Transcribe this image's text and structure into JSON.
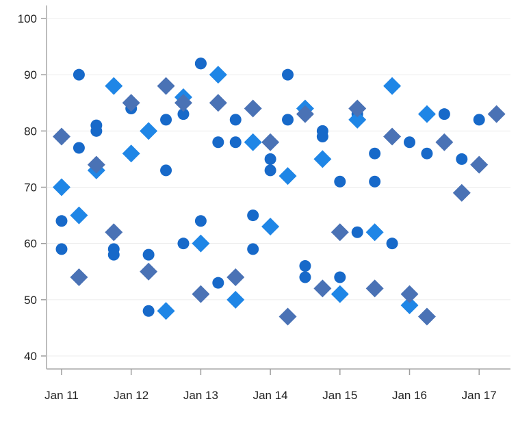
{
  "chart_data": {
    "type": "scatter",
    "title": "",
    "xlabel": "",
    "ylabel": "",
    "x_ticks": [
      "Jan 11",
      "Jan 12",
      "Jan 13",
      "Jan 14",
      "Jan 15",
      "Jan 16",
      "Jan 17"
    ],
    "y_ticks": [
      "40",
      "50",
      "60",
      "70",
      "80",
      "90",
      "100"
    ],
    "xlim": [
      "Jan 10 19:00",
      "Jan 17 12:00"
    ],
    "ylim": [
      38,
      102
    ],
    "grid": "horizontal",
    "legend": "none",
    "series": [
      {
        "marker": "circle",
        "color": "#1769c9",
        "points": [
          {
            "x": "Jan 11 00:00",
            "y": 64
          },
          {
            "x": "Jan 11 00:00",
            "y": 59
          },
          {
            "x": "Jan 11 06:00",
            "y": 90
          },
          {
            "x": "Jan 11 06:00",
            "y": 77
          },
          {
            "x": "Jan 11 12:00",
            "y": 81
          },
          {
            "x": "Jan 11 12:00",
            "y": 80
          },
          {
            "x": "Jan 11 18:00",
            "y": 59
          },
          {
            "x": "Jan 11 18:00",
            "y": 58
          },
          {
            "x": "Jan 12 00:00",
            "y": 84
          },
          {
            "x": "Jan 12 06:00",
            "y": 58
          },
          {
            "x": "Jan 12 06:00",
            "y": 48
          },
          {
            "x": "Jan 12 12:00",
            "y": 82
          },
          {
            "x": "Jan 12 12:00",
            "y": 73
          },
          {
            "x": "Jan 12 18:00",
            "y": 83
          },
          {
            "x": "Jan 12 18:00",
            "y": 60
          },
          {
            "x": "Jan 13 00:00",
            "y": 92
          },
          {
            "x": "Jan 13 00:00",
            "y": 64
          },
          {
            "x": "Jan 13 06:00",
            "y": 78
          },
          {
            "x": "Jan 13 06:00",
            "y": 53
          },
          {
            "x": "Jan 13 12:00",
            "y": 82
          },
          {
            "x": "Jan 13 12:00",
            "y": 78
          },
          {
            "x": "Jan 13 18:00",
            "y": 65
          },
          {
            "x": "Jan 13 18:00",
            "y": 59
          },
          {
            "x": "Jan 14 00:00",
            "y": 75
          },
          {
            "x": "Jan 14 00:00",
            "y": 73
          },
          {
            "x": "Jan 14 06:00",
            "y": 90
          },
          {
            "x": "Jan 14 06:00",
            "y": 82
          },
          {
            "x": "Jan 14 12:00",
            "y": 56
          },
          {
            "x": "Jan 14 12:00",
            "y": 54
          },
          {
            "x": "Jan 14 18:00",
            "y": 80
          },
          {
            "x": "Jan 14 18:00",
            "y": 79
          },
          {
            "x": "Jan 15 00:00",
            "y": 71
          },
          {
            "x": "Jan 15 00:00",
            "y": 54
          },
          {
            "x": "Jan 15 06:00",
            "y": 83
          },
          {
            "x": "Jan 15 06:00",
            "y": 62
          },
          {
            "x": "Jan 15 12:00",
            "y": 76
          },
          {
            "x": "Jan 15 12:00",
            "y": 71
          },
          {
            "x": "Jan 15 18:00",
            "y": 60
          },
          {
            "x": "Jan 16 00:00",
            "y": 78
          },
          {
            "x": "Jan 16 06:00",
            "y": 76
          },
          {
            "x": "Jan 16 12:00",
            "y": 83
          },
          {
            "x": "Jan 16 18:00",
            "y": 75
          },
          {
            "x": "Jan 17 00:00",
            "y": 82
          },
          {
            "x": "Jan 13 00:00",
            "y": 92
          }
        ]
      },
      {
        "marker": "diamond",
        "color": "#1f86e6",
        "points": [
          {
            "x": "Jan 11 00:00",
            "y": 70
          },
          {
            "x": "Jan 11 06:00",
            "y": 65
          },
          {
            "x": "Jan 11 12:00",
            "y": 73
          },
          {
            "x": "Jan 11 18:00",
            "y": 88
          },
          {
            "x": "Jan 12 00:00",
            "y": 76
          },
          {
            "x": "Jan 12 06:00",
            "y": 80
          },
          {
            "x": "Jan 12 12:00",
            "y": 48
          },
          {
            "x": "Jan 12 18:00",
            "y": 86
          },
          {
            "x": "Jan 13 00:00",
            "y": 60
          },
          {
            "x": "Jan 13 06:00",
            "y": 90
          },
          {
            "x": "Jan 13 12:00",
            "y": 50
          },
          {
            "x": "Jan 13 18:00",
            "y": 78
          },
          {
            "x": "Jan 14 00:00",
            "y": 63
          },
          {
            "x": "Jan 14 06:00",
            "y": 72
          },
          {
            "x": "Jan 14 12:00",
            "y": 84
          },
          {
            "x": "Jan 14 18:00",
            "y": 75
          },
          {
            "x": "Jan 15 00:00",
            "y": 51
          },
          {
            "x": "Jan 15 06:00",
            "y": 82
          },
          {
            "x": "Jan 15 12:00",
            "y": 62
          },
          {
            "x": "Jan 15 18:00",
            "y": 88
          },
          {
            "x": "Jan 16 00:00",
            "y": 49
          },
          {
            "x": "Jan 16 06:00",
            "y": 83
          }
        ]
      },
      {
        "marker": "diamond",
        "color": "#4a72b5",
        "points": [
          {
            "x": "Jan 11 00:00",
            "y": 79
          },
          {
            "x": "Jan 11 06:00",
            "y": 54
          },
          {
            "x": "Jan 11 12:00",
            "y": 74
          },
          {
            "x": "Jan 11 18:00",
            "y": 62
          },
          {
            "x": "Jan 12 00:00",
            "y": 85
          },
          {
            "x": "Jan 12 06:00",
            "y": 55
          },
          {
            "x": "Jan 12 12:00",
            "y": 88
          },
          {
            "x": "Jan 12 18:00",
            "y": 85
          },
          {
            "x": "Jan 13 00:00",
            "y": 51
          },
          {
            "x": "Jan 13 06:00",
            "y": 85
          },
          {
            "x": "Jan 13 12:00",
            "y": 54
          },
          {
            "x": "Jan 13 18:00",
            "y": 84
          },
          {
            "x": "Jan 14 00:00",
            "y": 78
          },
          {
            "x": "Jan 14 06:00",
            "y": 47
          },
          {
            "x": "Jan 14 12:00",
            "y": 83
          },
          {
            "x": "Jan 14 18:00",
            "y": 52
          },
          {
            "x": "Jan 15 00:00",
            "y": 62
          },
          {
            "x": "Jan 15 06:00",
            "y": 84
          },
          {
            "x": "Jan 15 12:00",
            "y": 52
          },
          {
            "x": "Jan 15 18:00",
            "y": 79
          },
          {
            "x": "Jan 16 00:00",
            "y": 51
          },
          {
            "x": "Jan 16 06:00",
            "y": 47
          },
          {
            "x": "Jan 16 12:00",
            "y": 78
          },
          {
            "x": "Jan 16 18:00",
            "y": 69
          },
          {
            "x": "Jan 17 00:00",
            "y": 74
          },
          {
            "x": "Jan 17 06:00",
            "y": 83
          }
        ]
      }
    ]
  }
}
